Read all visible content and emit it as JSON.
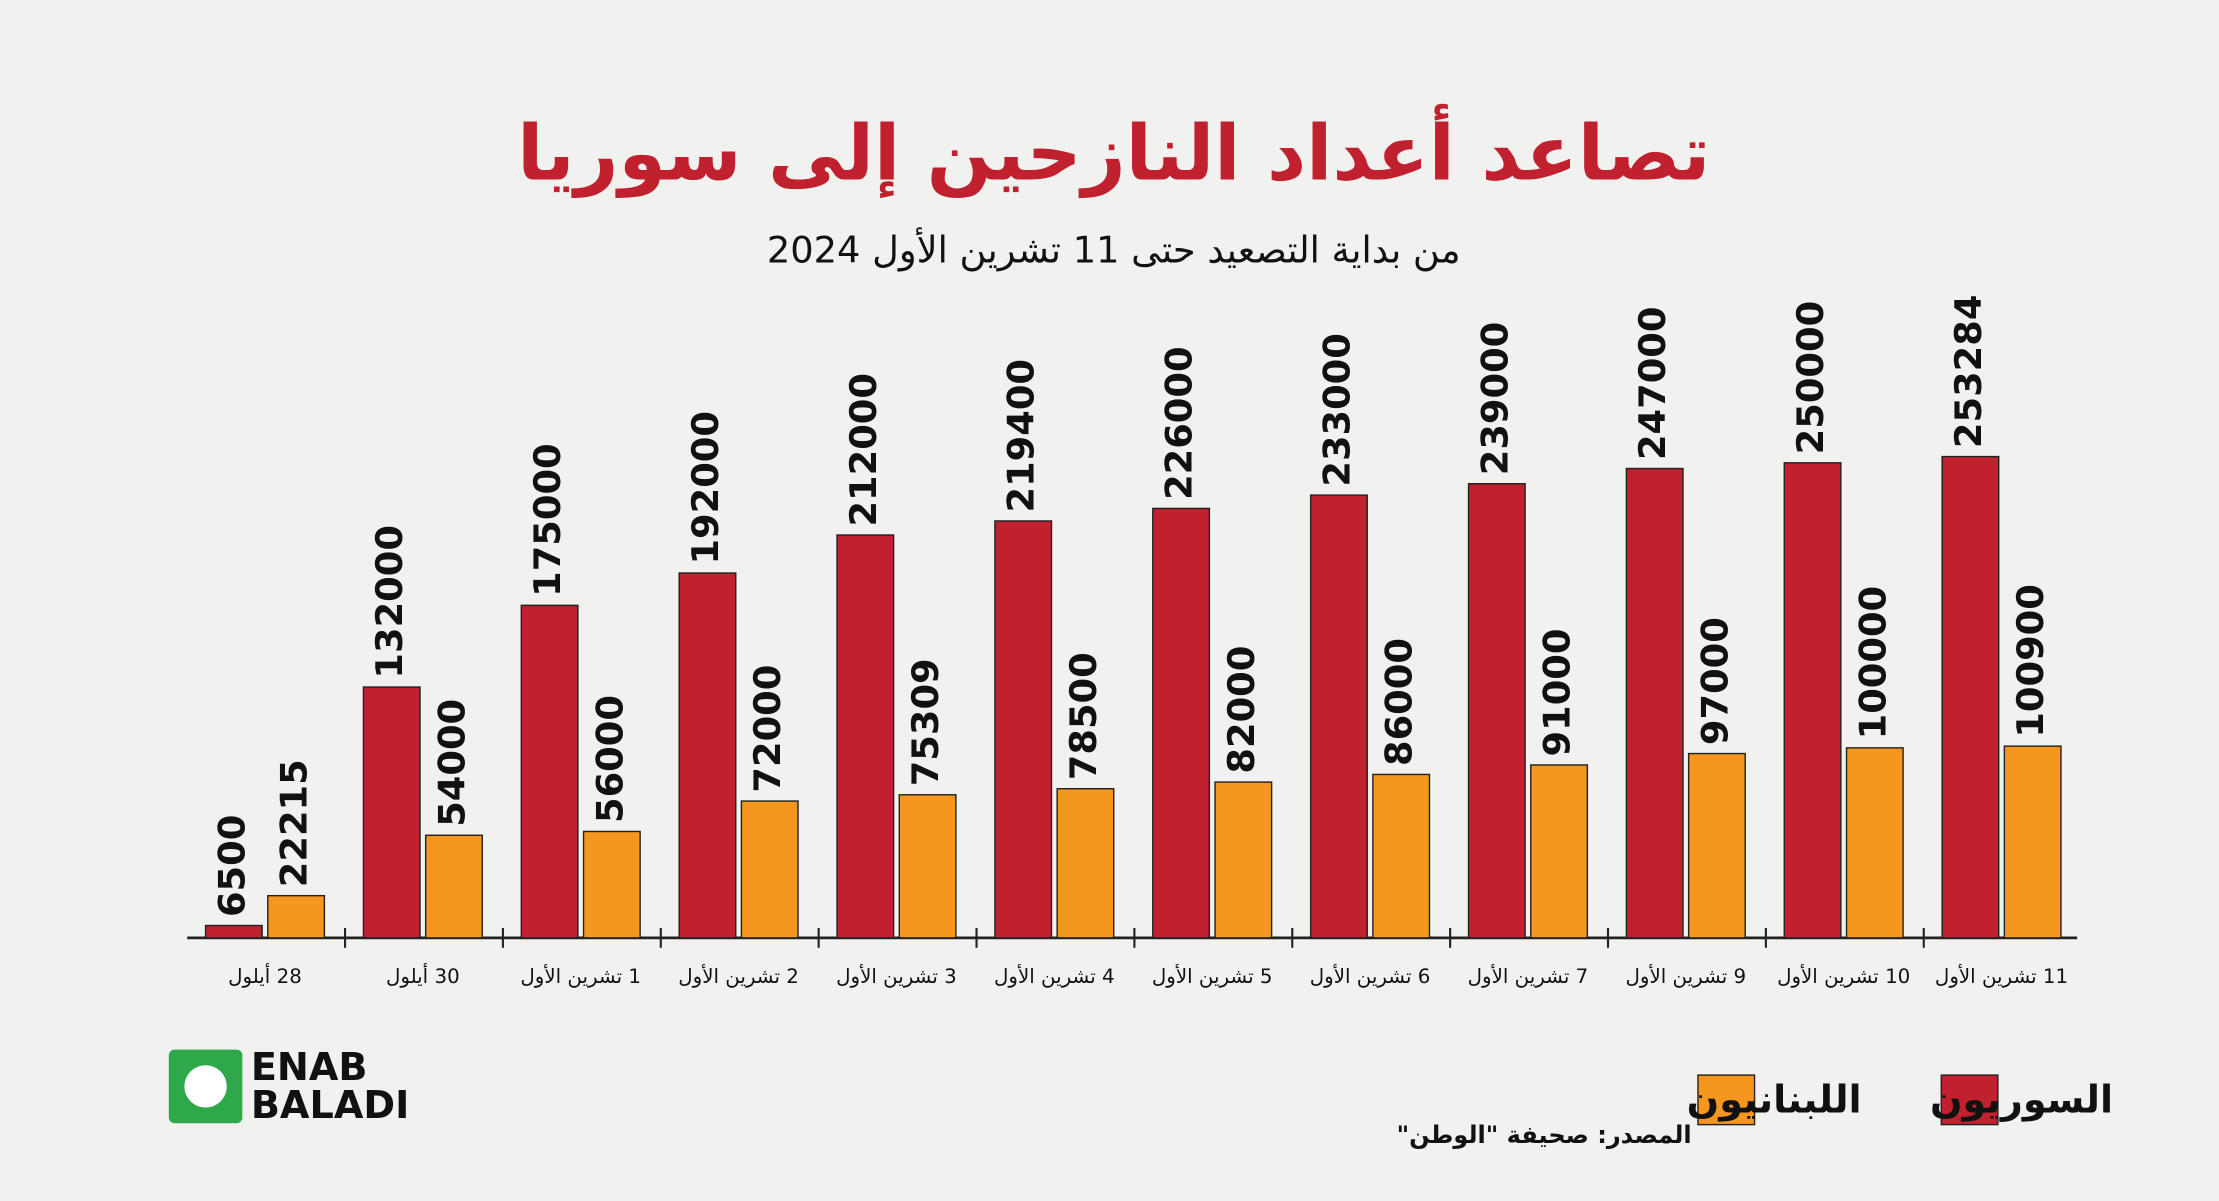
{
  "chart_data": {
    "type": "bar",
    "title": "تصاعد أعداد النازحين إلى سوريا",
    "subtitle": "من بداية التصعيد حتى 11  تشرين الأول 2024",
    "categories": [
      "28 أيلول",
      "30 أيلول",
      "1 تشرين الأول",
      "2 تشرين الأول",
      "3 تشرين الأول",
      "4 تشرين الأول",
      "5 تشرين الأول",
      "6 تشرين الأول",
      "7 تشرين الأول",
      "9 تشرين الأول",
      "10 تشرين الأول",
      "11 تشرين الأول"
    ],
    "series": [
      {
        "name": "السوريون",
        "color": "#c1202f",
        "values": [
          6500,
          132000,
          175000,
          192000,
          212000,
          219400,
          226000,
          233000,
          239000,
          247000,
          250000,
          253284
        ]
      },
      {
        "name": "اللبنانيون",
        "color": "#f5961e",
        "values": [
          22215,
          54000,
          56000,
          72000,
          75309,
          78500,
          82000,
          86000,
          91000,
          97000,
          100000,
          100900
        ]
      }
    ],
    "ylim": [
      0,
      300000
    ],
    "source": "المصدر: صحيفة \"الوطن\"",
    "logo": [
      "ENAB",
      "BALADI"
    ]
  }
}
